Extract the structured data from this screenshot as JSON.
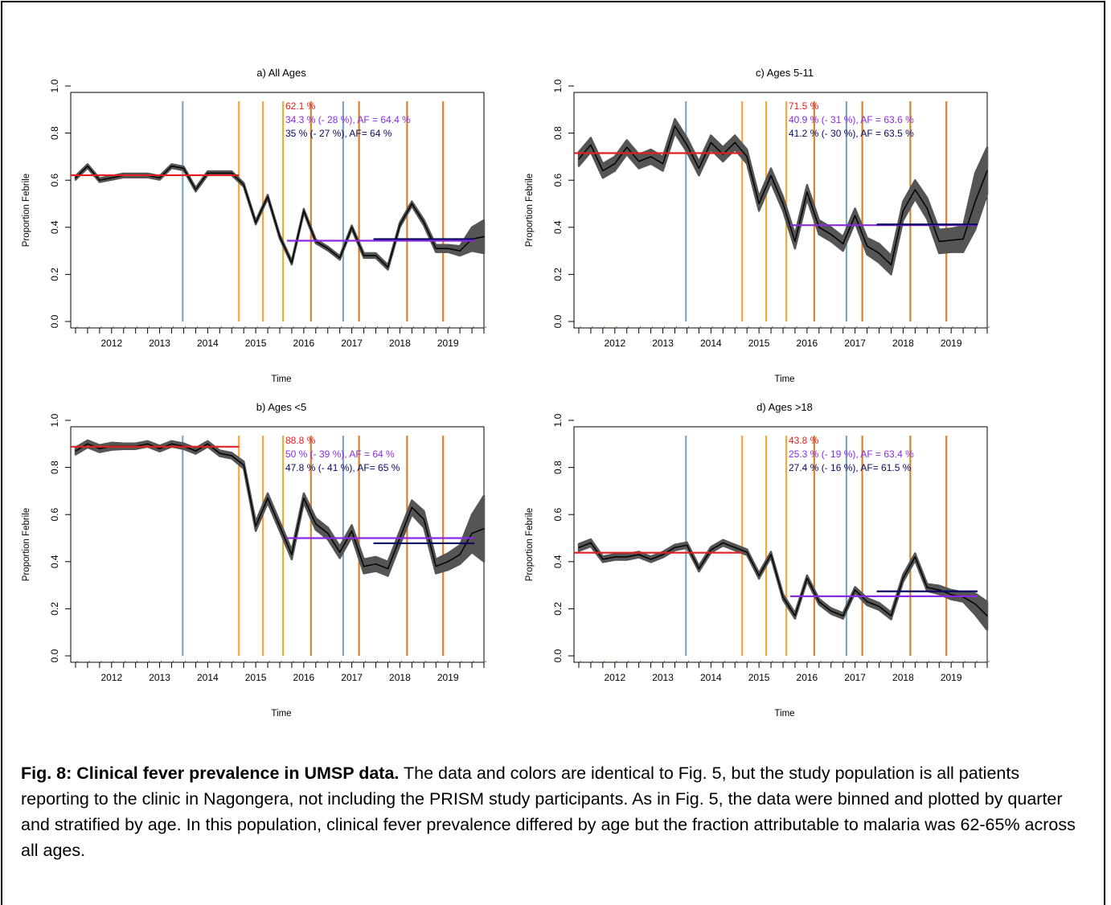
{
  "figure": {
    "caption_title": "Fig. 8: Clinical fever prevalence in UMSP data.",
    "caption_text": " The data and colors are identical to Fig. 5, but the study population is all patients reporting to the clinic in Nagongera, not including the PRISM study participants. As in Fig. 5, the data were binned and plotted by quarter and stratified by age. In this population, clinical fever prevalence differed by age but the fraction attributable to malaria was 62-65% across all ages."
  },
  "colors": {
    "red": "#e02020",
    "purple": "#8a2be2",
    "navy": "#0a0a60",
    "blue_line": "#7ea7c4",
    "yellow_line": "#f2a93b",
    "orange_line": "#d9822b",
    "band": "#555555",
    "line": "#000000"
  },
  "chart_data": [
    {
      "type": "line",
      "title": "a) All Ages",
      "xlabel": "Time",
      "ylabel": "Proportion Febrile",
      "xlim": [
        2011.5,
        2020.1
      ],
      "ylim": [
        0,
        1.0
      ],
      "x_ticks": [
        "2012",
        "2013",
        "2014",
        "2015",
        "2016",
        "2017",
        "2018",
        "2019"
      ],
      "y_ticks": [
        "0.0",
        "0.2",
        "0.4",
        "0.6",
        "0.8",
        "1.0"
      ],
      "annotations": [
        {
          "text": "62.1 %",
          "color": "red"
        },
        {
          "text": "34.3 %  (- 28 %), AF = 64.4 %",
          "color": "purple"
        },
        {
          "text": "35 %  (- 27 %), AF= 64 %",
          "color": "navy"
        }
      ],
      "x": [
        2011.6,
        2011.85,
        2012.1,
        2012.35,
        2012.6,
        2012.85,
        2013.1,
        2013.35,
        2013.6,
        2013.85,
        2014.1,
        2014.35,
        2014.6,
        2014.85,
        2015.1,
        2015.35,
        2015.6,
        2015.85,
        2016.1,
        2016.35,
        2016.6,
        2016.85,
        2017.1,
        2017.35,
        2017.6,
        2017.85,
        2018.1,
        2018.35,
        2018.6,
        2018.85,
        2019.1,
        2019.35,
        2019.6,
        2019.85,
        2020.1
      ],
      "y": [
        0.61,
        0.66,
        0.6,
        0.61,
        0.62,
        0.62,
        0.62,
        0.61,
        0.66,
        0.65,
        0.56,
        0.63,
        0.63,
        0.63,
        0.58,
        0.42,
        0.53,
        0.36,
        0.25,
        0.47,
        0.34,
        0.31,
        0.27,
        0.4,
        0.28,
        0.28,
        0.23,
        0.41,
        0.5,
        0.42,
        0.31,
        0.31,
        0.3,
        0.35,
        0.36
      ],
      "band": [
        0.008,
        0.008,
        0.008,
        0.008,
        0.008,
        0.008,
        0.008,
        0.008,
        0.008,
        0.008,
        0.008,
        0.008,
        0.008,
        0.008,
        0.008,
        0.008,
        0.008,
        0.008,
        0.008,
        0.008,
        0.008,
        0.008,
        0.008,
        0.008,
        0.01,
        0.01,
        0.01,
        0.01,
        0.01,
        0.012,
        0.015,
        0.015,
        0.02,
        0.05,
        0.07
      ],
      "hlines": [
        {
          "y": 0.621,
          "x0": 2011.5,
          "x1": 2015.0,
          "color": "red"
        },
        {
          "y": 0.343,
          "x0": 2016.0,
          "x1": 2019.9,
          "color": "purple"
        },
        {
          "y": 0.35,
          "x0": 2017.8,
          "x1": 2019.9,
          "color": "navy"
        }
      ],
      "vlines": [
        {
          "x": 2013.83,
          "color": "blue_line"
        },
        {
          "x": 2015.0,
          "color": "yellow_line"
        },
        {
          "x": 2015.5,
          "color": "yellow_line"
        },
        {
          "x": 2015.92,
          "color": "yellow_line"
        },
        {
          "x": 2016.5,
          "color": "orange_line"
        },
        {
          "x": 2017.17,
          "color": "blue_line"
        },
        {
          "x": 2017.5,
          "color": "orange_line"
        },
        {
          "x": 2018.5,
          "color": "orange_line"
        },
        {
          "x": 2019.25,
          "color": "orange_line"
        }
      ]
    },
    {
      "type": "line",
      "title": "c) Ages 5-11",
      "xlabel": "Time",
      "ylabel": "Proportion Febrile",
      "xlim": [
        2011.5,
        2020.1
      ],
      "ylim": [
        0,
        1.0
      ],
      "x_ticks": [
        "2012",
        "2013",
        "2014",
        "2015",
        "2016",
        "2017",
        "2018",
        "2019"
      ],
      "y_ticks": [
        "0.0",
        "0.2",
        "0.4",
        "0.6",
        "0.8",
        "1.0"
      ],
      "annotations": [
        {
          "text": "71.5 %",
          "color": "red"
        },
        {
          "text": "40.9 %  (- 31 %), AF = 63.6 %",
          "color": "purple"
        },
        {
          "text": "41.2 %  (- 30 %), AF = 63.5 %",
          "color": "navy"
        }
      ],
      "x": [
        2011.6,
        2011.85,
        2012.1,
        2012.35,
        2012.6,
        2012.85,
        2013.1,
        2013.35,
        2013.6,
        2013.85,
        2014.1,
        2014.35,
        2014.6,
        2014.85,
        2015.1,
        2015.35,
        2015.6,
        2015.85,
        2016.1,
        2016.35,
        2016.6,
        2016.85,
        2017.1,
        2017.35,
        2017.6,
        2017.85,
        2018.1,
        2018.35,
        2018.6,
        2018.85,
        2019.1,
        2019.35,
        2019.6,
        2019.85,
        2020.1
      ],
      "y": [
        0.69,
        0.75,
        0.64,
        0.67,
        0.74,
        0.68,
        0.7,
        0.67,
        0.83,
        0.75,
        0.65,
        0.76,
        0.71,
        0.76,
        0.7,
        0.5,
        0.62,
        0.5,
        0.34,
        0.55,
        0.4,
        0.37,
        0.33,
        0.45,
        0.32,
        0.29,
        0.24,
        0.47,
        0.56,
        0.48,
        0.34,
        0.345,
        0.35,
        0.51,
        0.64
      ],
      "band": [
        0.03,
        0.03,
        0.03,
        0.03,
        0.03,
        0.03,
        0.03,
        0.03,
        0.03,
        0.03,
        0.03,
        0.03,
        0.03,
        0.03,
        0.03,
        0.03,
        0.03,
        0.03,
        0.03,
        0.03,
        0.03,
        0.03,
        0.03,
        0.03,
        0.035,
        0.04,
        0.04,
        0.04,
        0.04,
        0.045,
        0.05,
        0.05,
        0.055,
        0.12,
        0.1
      ],
      "hlines": [
        {
          "y": 0.715,
          "x0": 2011.5,
          "x1": 2015.0,
          "color": "red"
        },
        {
          "y": 0.409,
          "x0": 2016.0,
          "x1": 2019.9,
          "color": "purple"
        },
        {
          "y": 0.412,
          "x0": 2017.8,
          "x1": 2019.9,
          "color": "navy"
        }
      ],
      "vlines": [
        {
          "x": 2013.83,
          "color": "blue_line"
        },
        {
          "x": 2015.0,
          "color": "yellow_line"
        },
        {
          "x": 2015.5,
          "color": "yellow_line"
        },
        {
          "x": 2015.92,
          "color": "yellow_line"
        },
        {
          "x": 2016.5,
          "color": "orange_line"
        },
        {
          "x": 2017.17,
          "color": "blue_line"
        },
        {
          "x": 2017.5,
          "color": "orange_line"
        },
        {
          "x": 2018.5,
          "color": "orange_line"
        },
        {
          "x": 2019.25,
          "color": "orange_line"
        }
      ]
    },
    {
      "type": "line",
      "title": "b) Ages <5",
      "xlabel": "Time",
      "ylabel": "Proportion Febrile",
      "xlim": [
        2011.5,
        2020.1
      ],
      "ylim": [
        0,
        1.0
      ],
      "x_ticks": [
        "2012",
        "2013",
        "2014",
        "2015",
        "2016",
        "2017",
        "2018",
        "2019"
      ],
      "y_ticks": [
        "0.0",
        "0.2",
        "0.4",
        "0.6",
        "0.8",
        "1.0"
      ],
      "annotations": [
        {
          "text": "88.8 %",
          "color": "red"
        },
        {
          "text": "50 %  (- 39 %), AF = 64 %",
          "color": "purple"
        },
        {
          "text": "47.8 %  (- 41 %), AF= 65 %",
          "color": "navy"
        }
      ],
      "x": [
        2011.6,
        2011.85,
        2012.1,
        2012.35,
        2012.6,
        2012.85,
        2013.1,
        2013.35,
        2013.6,
        2013.85,
        2014.1,
        2014.35,
        2014.6,
        2014.85,
        2015.1,
        2015.35,
        2015.6,
        2015.85,
        2016.1,
        2016.35,
        2016.6,
        2016.85,
        2017.1,
        2017.35,
        2017.6,
        2017.85,
        2018.1,
        2018.35,
        2018.6,
        2018.85,
        2019.1,
        2019.35,
        2019.6,
        2019.85,
        2020.1
      ],
      "y": [
        0.87,
        0.9,
        0.88,
        0.89,
        0.89,
        0.89,
        0.9,
        0.88,
        0.9,
        0.89,
        0.87,
        0.9,
        0.86,
        0.85,
        0.81,
        0.55,
        0.67,
        0.55,
        0.43,
        0.67,
        0.56,
        0.52,
        0.44,
        0.53,
        0.38,
        0.39,
        0.37,
        0.5,
        0.63,
        0.58,
        0.38,
        0.4,
        0.43,
        0.52,
        0.54
      ],
      "band": [
        0.015,
        0.015,
        0.015,
        0.015,
        0.012,
        0.012,
        0.012,
        0.012,
        0.012,
        0.012,
        0.012,
        0.012,
        0.012,
        0.012,
        0.015,
        0.02,
        0.02,
        0.02,
        0.02,
        0.02,
        0.025,
        0.025,
        0.025,
        0.025,
        0.03,
        0.03,
        0.03,
        0.03,
        0.03,
        0.035,
        0.03,
        0.035,
        0.04,
        0.08,
        0.14
      ],
      "hlines": [
        {
          "y": 0.888,
          "x0": 2011.5,
          "x1": 2015.0,
          "color": "red"
        },
        {
          "y": 0.5,
          "x0": 2016.0,
          "x1": 2019.9,
          "color": "purple"
        },
        {
          "y": 0.478,
          "x0": 2017.8,
          "x1": 2019.9,
          "color": "navy"
        }
      ],
      "vlines": [
        {
          "x": 2013.83,
          "color": "blue_line"
        },
        {
          "x": 2015.0,
          "color": "yellow_line"
        },
        {
          "x": 2015.5,
          "color": "yellow_line"
        },
        {
          "x": 2015.92,
          "color": "yellow_line"
        },
        {
          "x": 2016.5,
          "color": "orange_line"
        },
        {
          "x": 2017.17,
          "color": "blue_line"
        },
        {
          "x": 2017.5,
          "color": "orange_line"
        },
        {
          "x": 2018.5,
          "color": "orange_line"
        },
        {
          "x": 2019.25,
          "color": "orange_line"
        }
      ]
    },
    {
      "type": "line",
      "title": "d) Ages >18",
      "xlabel": "Time",
      "ylabel": "Proportion Febrile",
      "xlim": [
        2011.5,
        2020.1
      ],
      "ylim": [
        0,
        1.0
      ],
      "x_ticks": [
        "2012",
        "2013",
        "2014",
        "2015",
        "2016",
        "2017",
        "2018",
        "2019"
      ],
      "y_ticks": [
        "0.0",
        "0.2",
        "0.4",
        "0.6",
        "0.8",
        "1.0"
      ],
      "annotations": [
        {
          "text": "43.8 %",
          "color": "red"
        },
        {
          "text": "25.3 %  (- 19 %), AF = 63.4 %",
          "color": "purple"
        },
        {
          "text": "27.4 %  (- 16 %), AF= 61.5 %",
          "color": "navy"
        }
      ],
      "x": [
        2011.6,
        2011.85,
        2012.1,
        2012.35,
        2012.6,
        2012.85,
        2013.1,
        2013.35,
        2013.6,
        2013.85,
        2014.1,
        2014.35,
        2014.6,
        2014.85,
        2015.1,
        2015.35,
        2015.6,
        2015.85,
        2016.1,
        2016.35,
        2016.6,
        2016.85,
        2017.1,
        2017.35,
        2017.6,
        2017.85,
        2018.1,
        2018.35,
        2018.6,
        2018.85,
        2019.1,
        2019.35,
        2019.6,
        2019.85,
        2020.1
      ],
      "y": [
        0.46,
        0.48,
        0.41,
        0.42,
        0.42,
        0.43,
        0.41,
        0.43,
        0.46,
        0.47,
        0.37,
        0.45,
        0.48,
        0.46,
        0.44,
        0.34,
        0.43,
        0.25,
        0.17,
        0.33,
        0.23,
        0.19,
        0.17,
        0.28,
        0.23,
        0.21,
        0.17,
        0.33,
        0.42,
        0.29,
        0.28,
        0.26,
        0.25,
        0.22,
        0.17
      ],
      "band": [
        0.015,
        0.015,
        0.012,
        0.012,
        0.012,
        0.012,
        0.012,
        0.012,
        0.012,
        0.012,
        0.012,
        0.012,
        0.012,
        0.012,
        0.012,
        0.012,
        0.012,
        0.012,
        0.012,
        0.012,
        0.012,
        0.012,
        0.012,
        0.012,
        0.015,
        0.015,
        0.015,
        0.015,
        0.015,
        0.015,
        0.018,
        0.02,
        0.02,
        0.045,
        0.06
      ],
      "hlines": [
        {
          "y": 0.438,
          "x0": 2011.5,
          "x1": 2015.0,
          "color": "red"
        },
        {
          "y": 0.253,
          "x0": 2016.0,
          "x1": 2019.9,
          "color": "purple"
        },
        {
          "y": 0.274,
          "x0": 2017.8,
          "x1": 2019.9,
          "color": "navy"
        }
      ],
      "vlines": [
        {
          "x": 2013.83,
          "color": "blue_line"
        },
        {
          "x": 2015.0,
          "color": "yellow_line"
        },
        {
          "x": 2015.5,
          "color": "yellow_line"
        },
        {
          "x": 2015.92,
          "color": "yellow_line"
        },
        {
          "x": 2016.5,
          "color": "orange_line"
        },
        {
          "x": 2017.17,
          "color": "blue_line"
        },
        {
          "x": 2017.5,
          "color": "orange_line"
        },
        {
          "x": 2018.5,
          "color": "orange_line"
        },
        {
          "x": 2019.25,
          "color": "orange_line"
        }
      ]
    }
  ]
}
